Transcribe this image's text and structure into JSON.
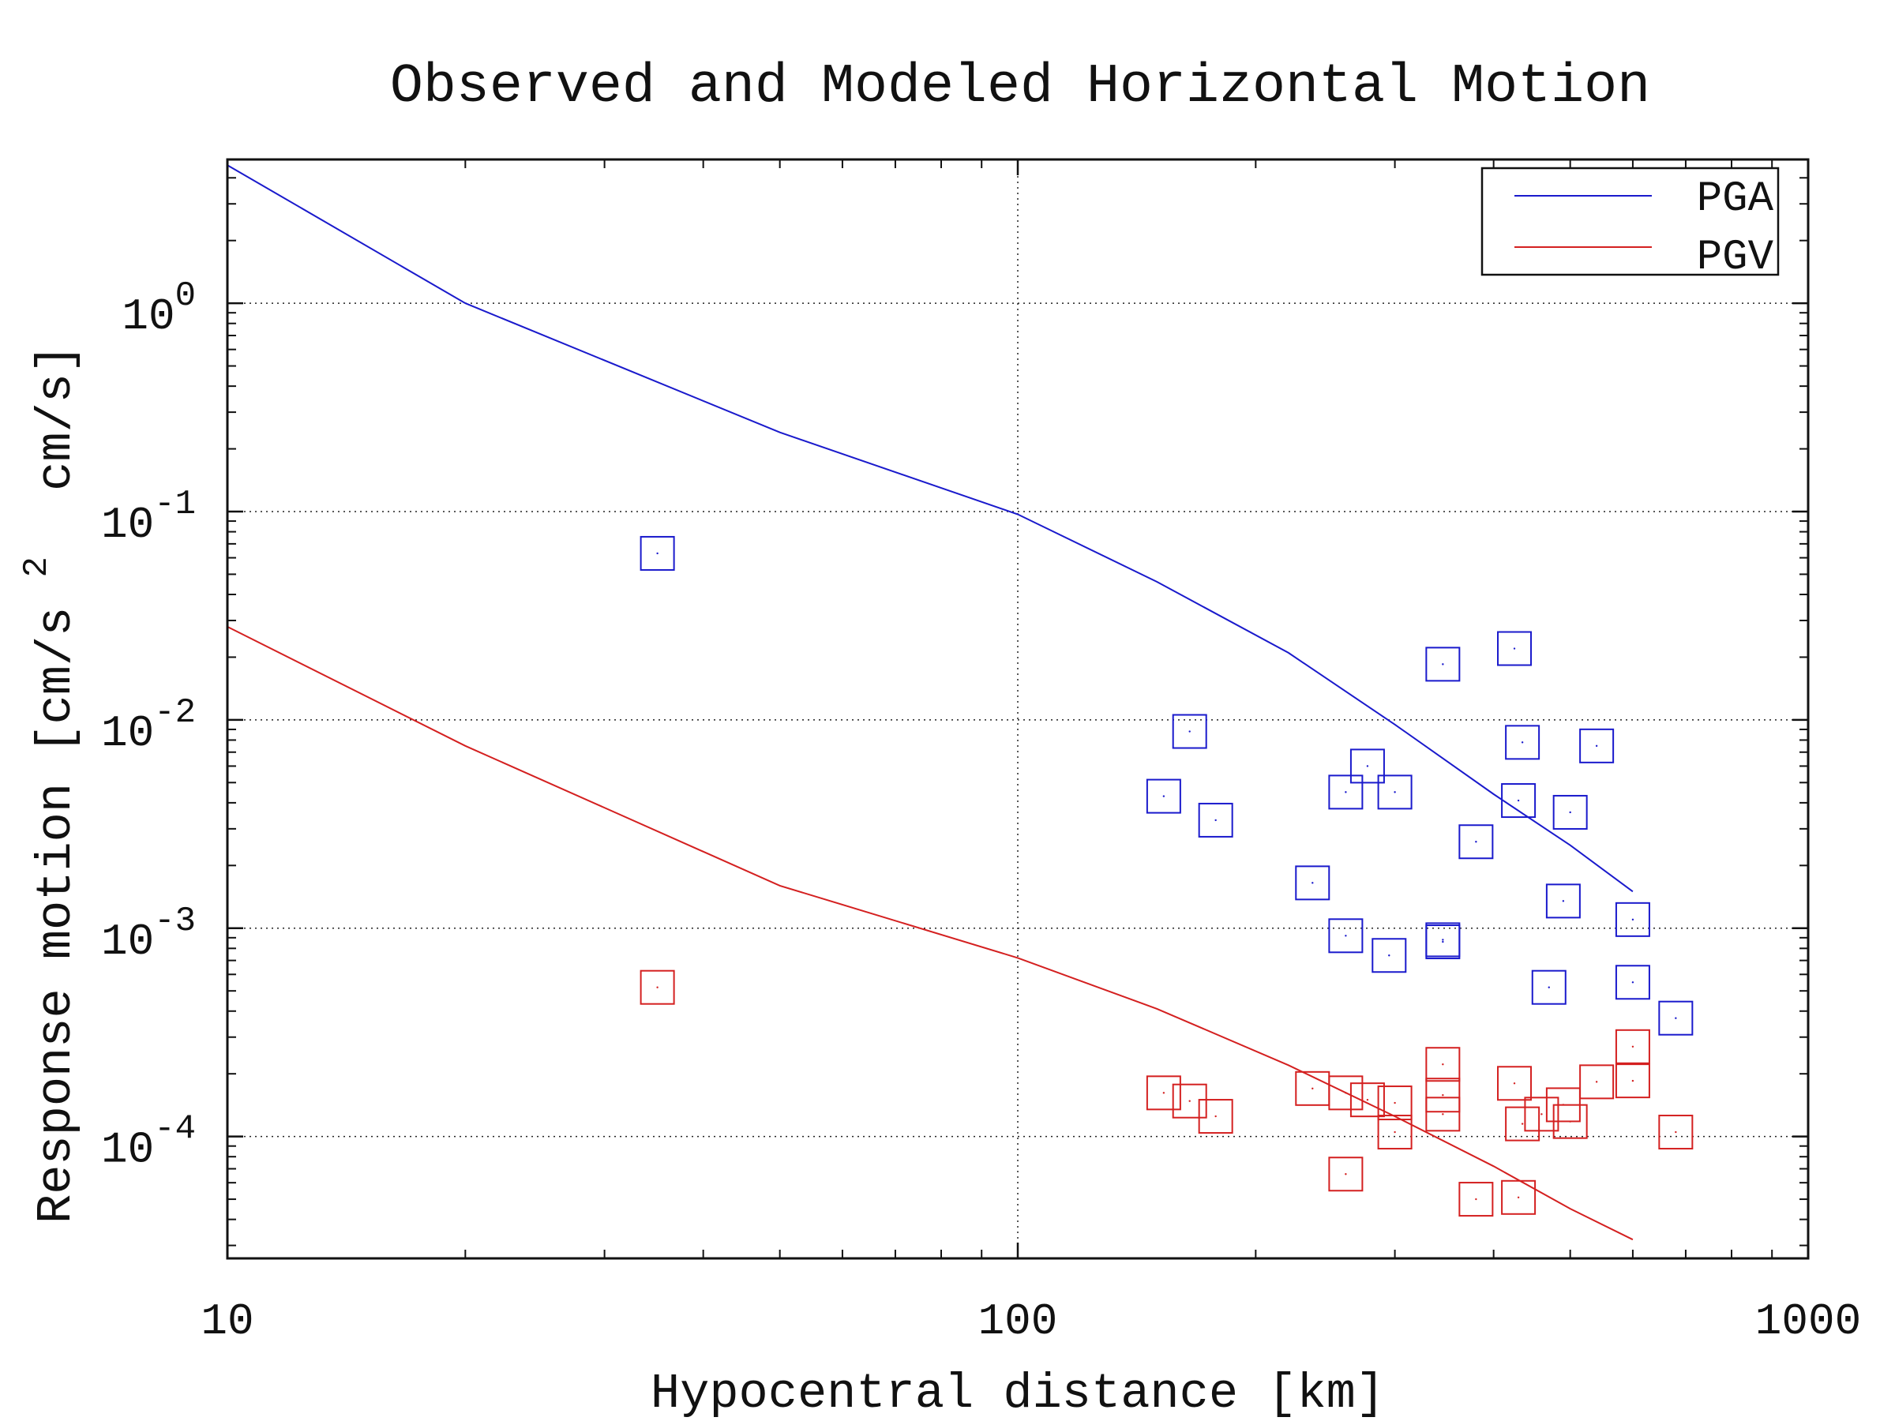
{
  "chart_data": {
    "type": "scatter",
    "title": "Observed and Modeled Horizontal Motion",
    "xlabel": "Hypocentral distance [km]",
    "ylabel": "Response motion [cm/s",
    "ylabel_sup": "2",
    "ylabel_tail": "cm/s]",
    "xscale": "log",
    "yscale": "log",
    "xlim": [
      10,
      1000
    ],
    "ylim": [
      2.6e-05,
      4.9
    ],
    "grid": true,
    "legend_position": "top-right",
    "x_ticks": [
      {
        "value": 10,
        "label": "10"
      },
      {
        "value": 100,
        "label": "100"
      },
      {
        "value": 1000,
        "label": "1000"
      }
    ],
    "y_ticks": [
      {
        "value": 1,
        "base": "10",
        "exp": "0"
      },
      {
        "value": 0.1,
        "base": "10",
        "exp": "-1"
      },
      {
        "value": 0.01,
        "base": "10",
        "exp": "-2"
      },
      {
        "value": 0.001,
        "base": "10",
        "exp": "-3"
      },
      {
        "value": 0.0001,
        "base": "10",
        "exp": "-4"
      }
    ],
    "series": [
      {
        "name": "PGA",
        "kind": "line",
        "color": "#1a1acc",
        "x": [
          10,
          20,
          50,
          100,
          150,
          220,
          300,
          400,
          500,
          600
        ],
        "y": [
          4.6,
          1.0,
          0.24,
          0.097,
          0.046,
          0.021,
          0.0095,
          0.0044,
          0.0025,
          0.0015
        ]
      },
      {
        "name": "PGV",
        "kind": "line",
        "color": "#d42020",
        "x": [
          10,
          20,
          50,
          100,
          150,
          220,
          300,
          400,
          500,
          600
        ],
        "y": [
          0.028,
          0.0075,
          0.0016,
          0.00072,
          0.00041,
          0.00022,
          0.000125,
          7.2e-05,
          4.5e-05,
          3.2e-05
        ]
      }
    ],
    "observations": [
      {
        "component": "PGA",
        "color": "#1a1acc",
        "x": [
          35,
          165,
          153,
          178,
          260,
          277,
          300,
          345,
          345,
          380,
          425,
          435,
          430,
          540,
          500,
          490,
          600,
          236,
          260,
          295,
          345,
          470,
          600,
          680
        ],
        "y": [
          0.063,
          0.0088,
          0.0043,
          0.0033,
          0.0045,
          0.006,
          0.0045,
          0.0185,
          0.00088,
          0.0026,
          0.022,
          0.0078,
          0.0041,
          0.0075,
          0.0036,
          0.00135,
          0.0011,
          0.00165,
          0.00092,
          0.00074,
          0.00086,
          0.00052,
          0.00055,
          0.00037
        ]
      },
      {
        "component": "PGV",
        "color": "#d42020",
        "x": [
          35,
          153,
          165,
          178,
          236,
          260,
          277,
          300,
          300,
          345,
          345,
          345,
          380,
          425,
          430,
          435,
          460,
          490,
          500,
          540,
          600,
          600,
          680,
          260
        ],
        "y": [
          0.00052,
          0.000162,
          0.000148,
          0.000125,
          0.00017,
          0.000162,
          0.00015,
          0.000145,
          0.000105,
          0.000222,
          0.000158,
          0.000128,
          5e-05,
          0.00018,
          5.1e-05,
          0.000115,
          0.000128,
          0.000142,
          0.000118,
          0.000183,
          0.00027,
          0.000185,
          0.000105,
          6.6e-05
        ]
      }
    ]
  }
}
